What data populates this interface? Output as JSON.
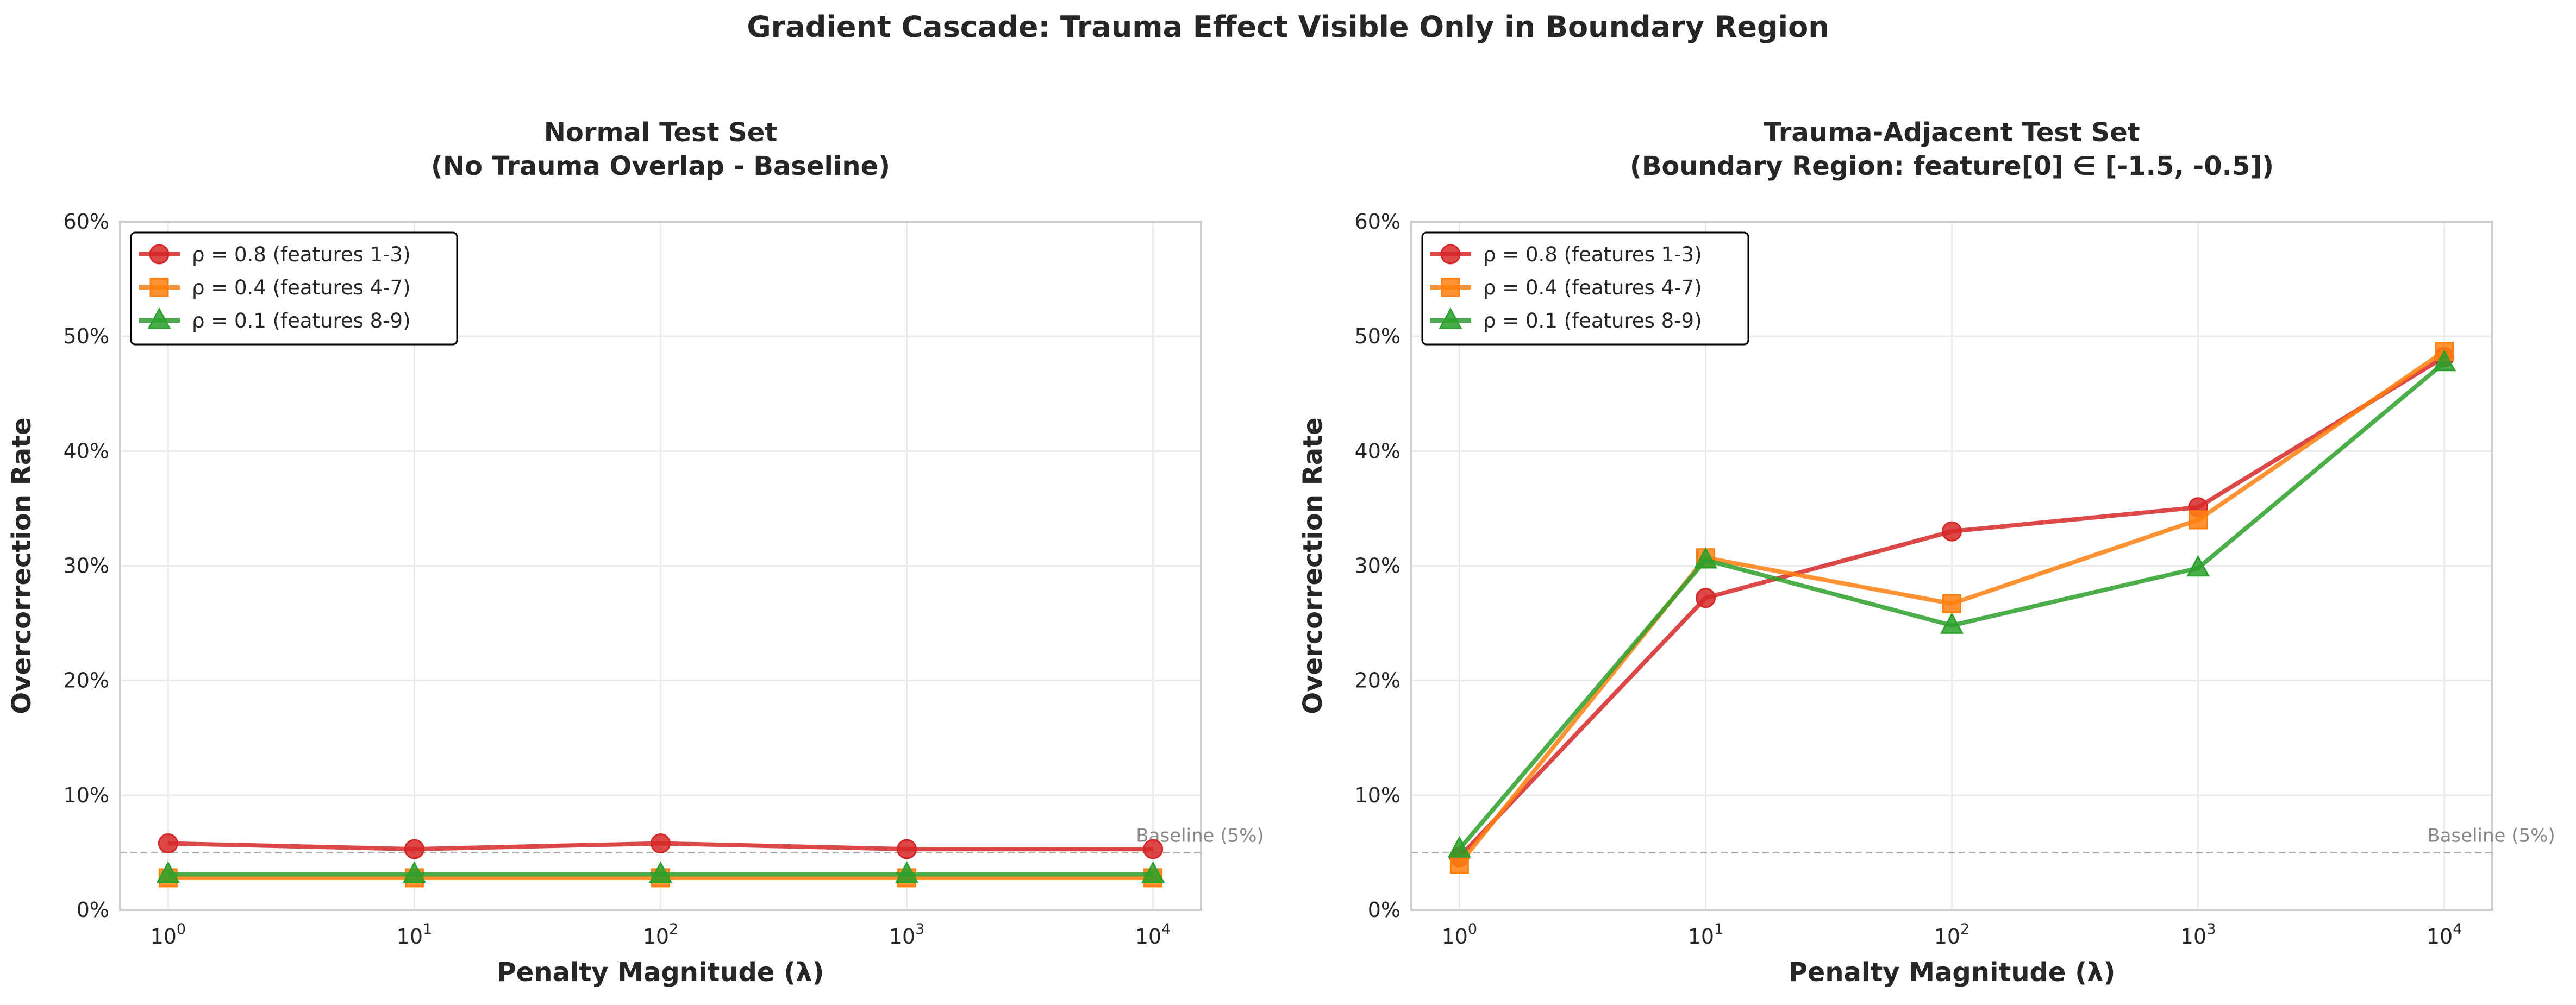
{
  "suptitle": "Gradient Cascade: Trauma Effect Visible Only in Boundary Region",
  "colors": {
    "rho_0_8": "#d62728",
    "rho_0_4": "#ff7f0e",
    "rho_0_1": "#2ca02c",
    "baseline": "#aaaaaa"
  },
  "chart_data": [
    {
      "type": "line",
      "title": "Normal Test Set",
      "subtitle": "(No Trauma Overlap - Baseline)",
      "xlabel": "Penalty Magnitude (λ)",
      "ylabel": "Overcorrection Rate",
      "x_scale": "log",
      "x": [
        1,
        10,
        100,
        1000,
        10000
      ],
      "x_tick_labels": [
        [
          "10",
          "0"
        ],
        [
          "10",
          "1"
        ],
        [
          "10",
          "2"
        ],
        [
          "10",
          "3"
        ],
        [
          "10",
          "4"
        ]
      ],
      "ylim": [
        0,
        60
      ],
      "y_ticks": [
        "0%",
        "10%",
        "20%",
        "30%",
        "40%",
        "50%",
        "60%"
      ],
      "grid": true,
      "legend_position": "top-left",
      "baseline": {
        "value": 5,
        "label": "Baseline (5%)"
      },
      "series": [
        {
          "name": "ρ = 0.8 (features 1-3)",
          "marker": "circle",
          "color": "#d62728",
          "values": [
            5.8,
            5.3,
            5.8,
            5.3,
            5.3
          ]
        },
        {
          "name": "ρ = 0.4 (features 4-7)",
          "marker": "square",
          "color": "#ff7f0e",
          "values": [
            2.8,
            2.8,
            2.8,
            2.8,
            2.8
          ]
        },
        {
          "name": "ρ = 0.1 (features 8-9)",
          "marker": "triangle",
          "color": "#2ca02c",
          "values": [
            3.1,
            3.1,
            3.1,
            3.1,
            3.1
          ]
        }
      ]
    },
    {
      "type": "line",
      "title": "Trauma-Adjacent Test Set",
      "subtitle": "(Boundary Region: feature[0] ∈ [-1.5, -0.5])",
      "xlabel": "Penalty Magnitude (λ)",
      "ylabel": "Overcorrection Rate",
      "x_scale": "log",
      "x": [
        1,
        10,
        100,
        1000,
        10000
      ],
      "x_tick_labels": [
        [
          "10",
          "0"
        ],
        [
          "10",
          "1"
        ],
        [
          "10",
          "2"
        ],
        [
          "10",
          "3"
        ],
        [
          "10",
          "4"
        ]
      ],
      "ylim": [
        0,
        60
      ],
      "y_ticks": [
        "0%",
        "10%",
        "20%",
        "30%",
        "40%",
        "50%",
        "60%"
      ],
      "grid": true,
      "legend_position": "top-left",
      "baseline": {
        "value": 5,
        "label": "Baseline (5%)"
      },
      "series": [
        {
          "name": "ρ = 0.8 (features 1-3)",
          "marker": "circle",
          "color": "#d62728",
          "values": [
            4.6,
            27.2,
            33.0,
            35.1,
            48.2
          ]
        },
        {
          "name": "ρ = 0.4 (features 4-7)",
          "marker": "square",
          "color": "#ff7f0e",
          "values": [
            4.0,
            30.7,
            26.7,
            34.0,
            48.7
          ]
        },
        {
          "name": "ρ = 0.1 (features 8-9)",
          "marker": "triangle",
          "color": "#2ca02c",
          "values": [
            5.3,
            30.5,
            24.8,
            29.8,
            47.7
          ]
        }
      ]
    }
  ]
}
